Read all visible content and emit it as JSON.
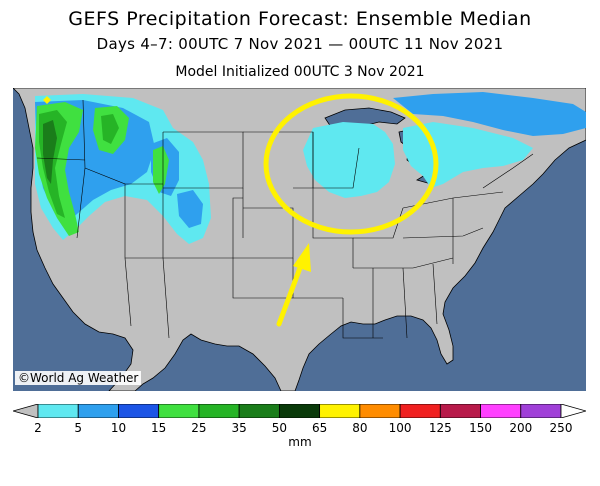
{
  "header": {
    "title": "GEFS Precipitation Forecast: Ensemble Median",
    "subtitle": "Days 4–7: 00UTC 7 Nov 2021 — 00UTC 11 Nov 2021",
    "init": "Model Initialized 00UTC 3 Nov 2021"
  },
  "map": {
    "region": "Contiguous United States",
    "credit": "©World Ag Weather",
    "annotations": [
      "yellow-circle-upper-midwest",
      "yellow-arrow-pointing-to-circle"
    ],
    "colors": {
      "land": "#c0c0c0",
      "water": "#4f6e97",
      "highlight": "#fff200"
    }
  },
  "legend": {
    "unit": "mm",
    "ticks": [
      "2",
      "5",
      "10",
      "15",
      "25",
      "35",
      "50",
      "65",
      "80",
      "100",
      "125",
      "150",
      "200",
      "250"
    ],
    "colors": [
      "#5fe8f0",
      "#2fa0ee",
      "#1c55e6",
      "#40e040",
      "#26b426",
      "#1a7d1a",
      "#0a3a0a",
      "#fff200",
      "#ff8c00",
      "#f02020",
      "#b81a4a",
      "#ff40ff",
      "#a040d8"
    ]
  }
}
